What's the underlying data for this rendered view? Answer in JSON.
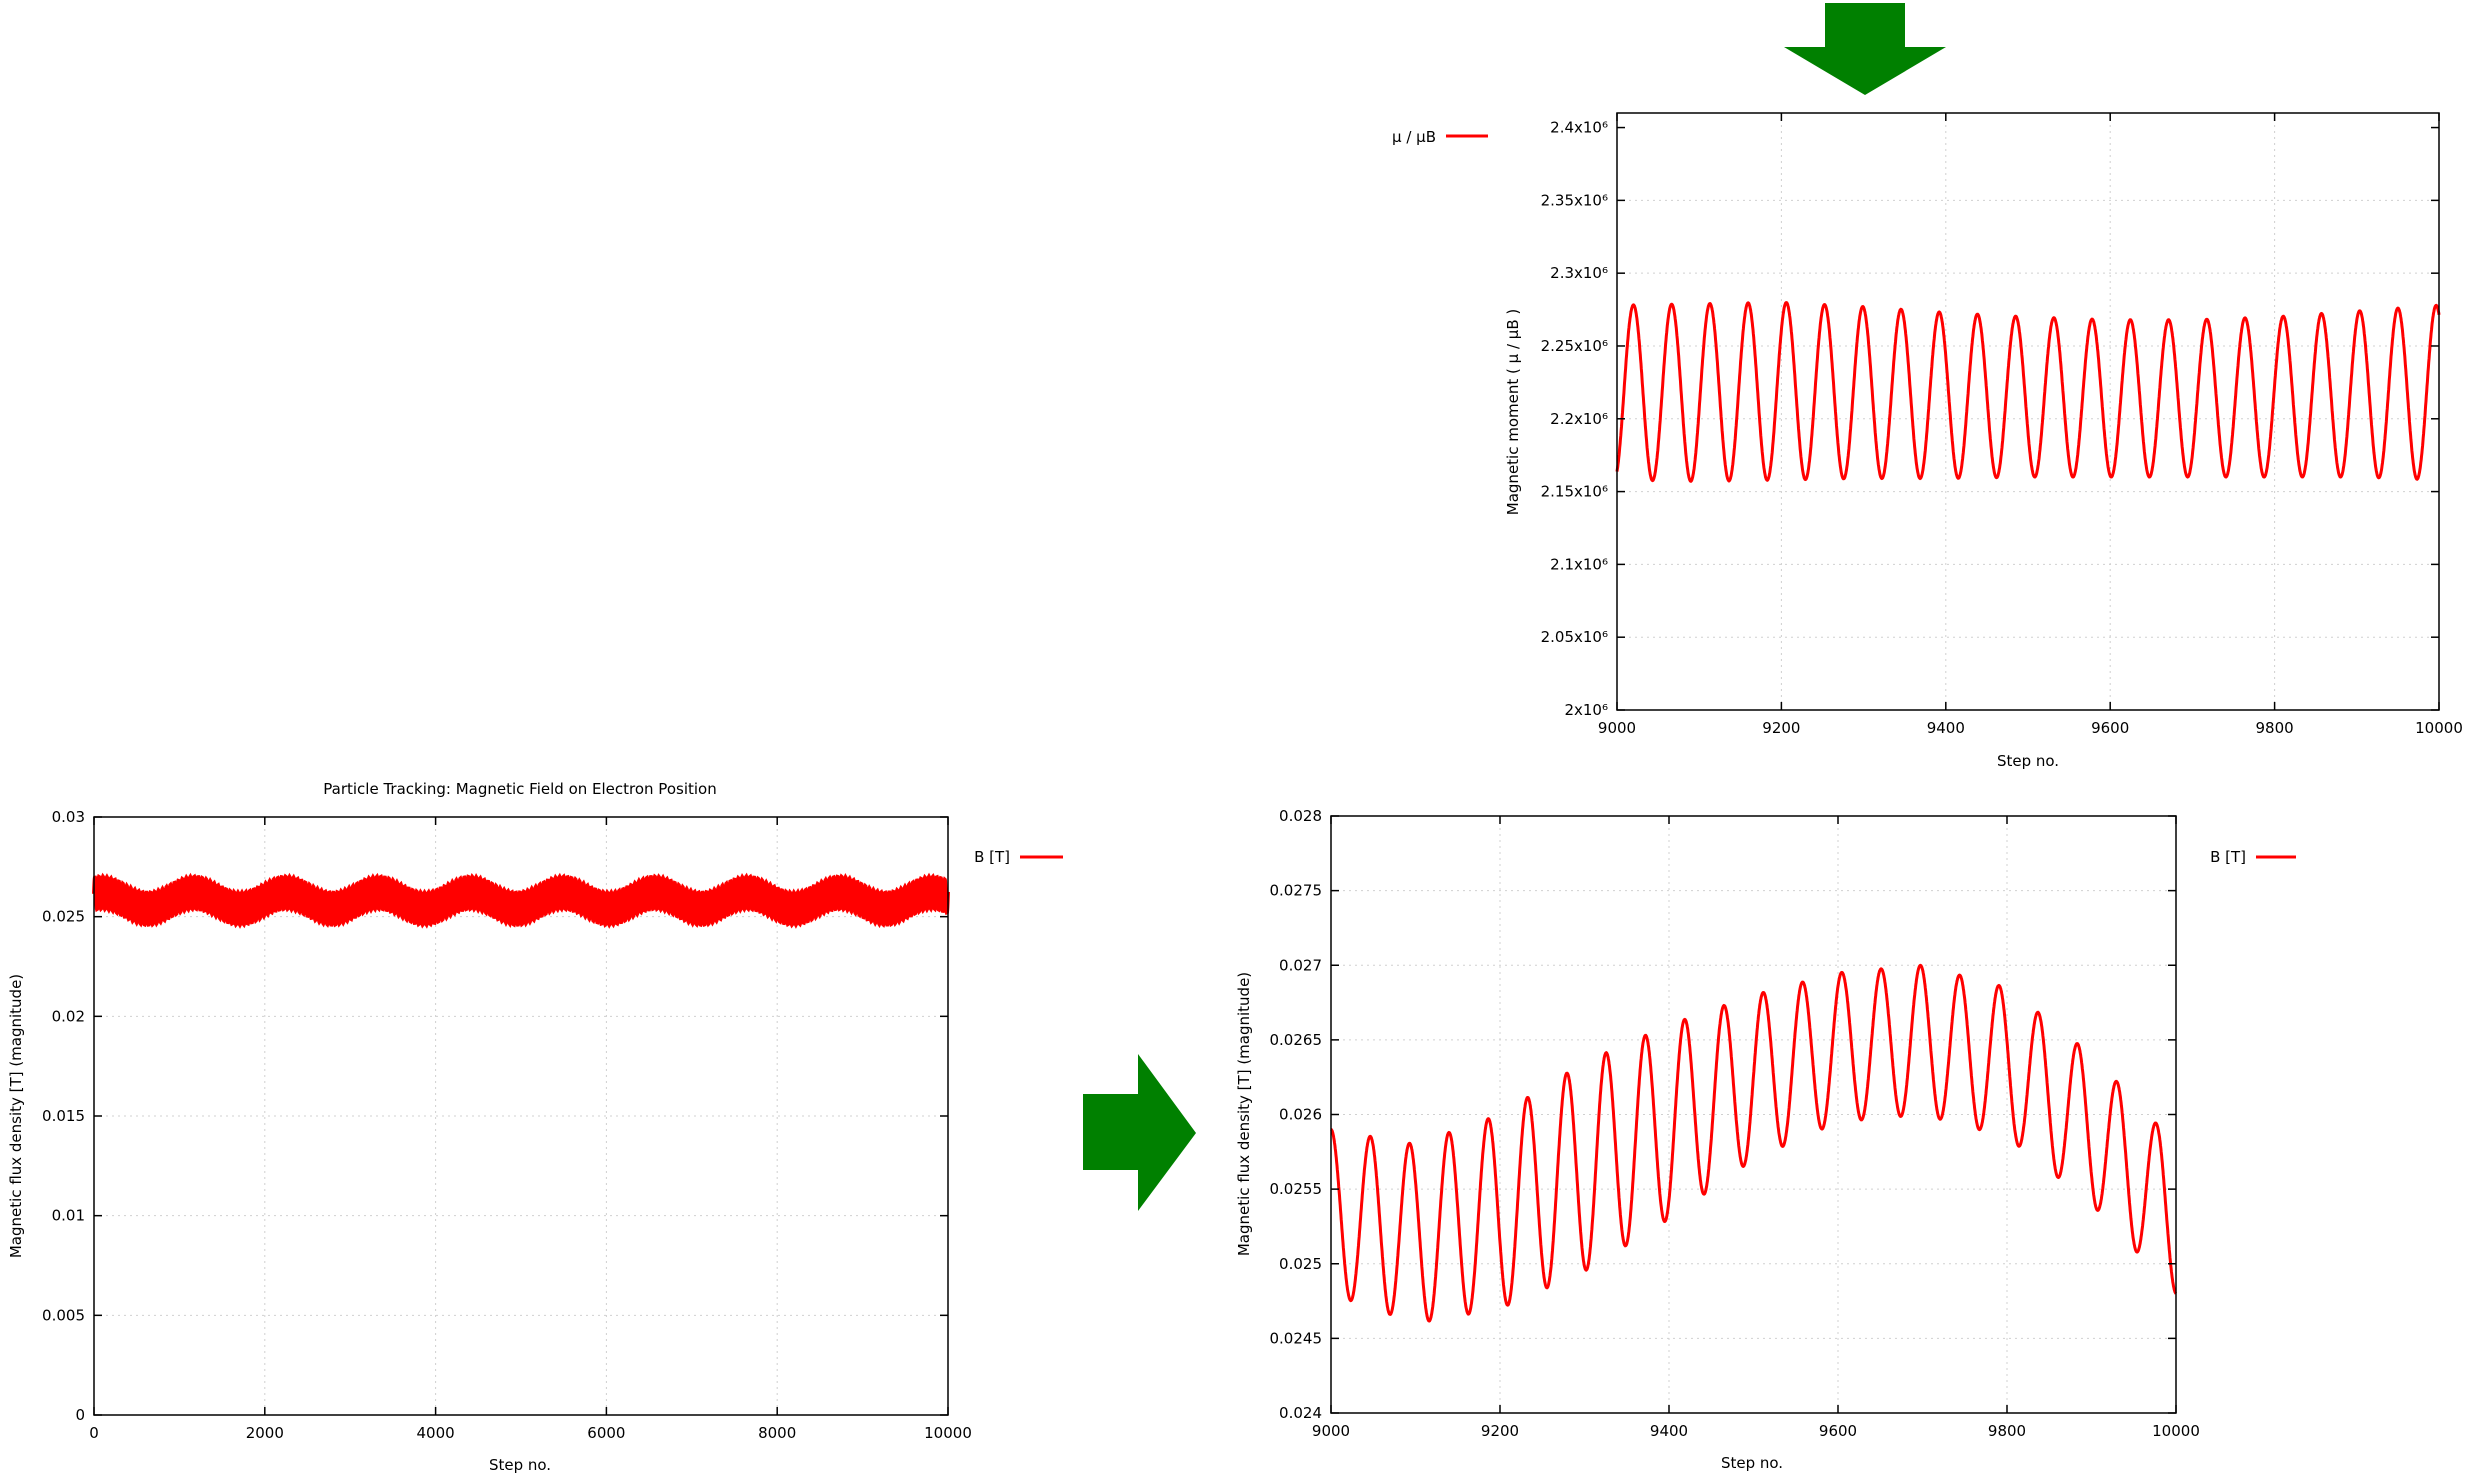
{
  "colors": {
    "series": "#ff0000",
    "arrow": "#008000",
    "axis": "#000000",
    "grid": "#d0d0d0"
  },
  "arrows": [
    {
      "name": "down-arrow-icon",
      "direction": "down"
    },
    {
      "name": "right-arrow-icon",
      "direction": "right"
    }
  ],
  "chart_data": [
    {
      "id": "moment",
      "type": "line",
      "title": "",
      "xlabel": "Step no.",
      "ylabel": "Magnetic moment ( μ / μB )",
      "xlim": [
        9000,
        10000
      ],
      "ylim": [
        2000000,
        2410000
      ],
      "xticks": [
        9000,
        9200,
        9400,
        9600,
        9800,
        10000
      ],
      "xtick_labels": [
        "9000",
        "9200",
        "9400",
        "9600",
        "9800",
        "10000"
      ],
      "yticks": [
        2000000,
        2050000,
        2100000,
        2150000,
        2200000,
        2250000,
        2300000,
        2350000,
        2400000
      ],
      "ytick_labels": [
        "2x10⁶",
        "2.05x10⁶",
        "2.1x10⁶",
        "2.15x10⁶",
        "2.2x10⁶",
        "2.25x10⁶",
        "2.3x10⁶",
        "2.35x10⁶",
        "2.4x10⁶"
      ],
      "legend_position": "top-left, outside plot",
      "grid": true,
      "series": [
        {
          "name": "μ / μB",
          "color": "#ff0000",
          "oscillation_period_steps": 46.5,
          "x": [
            9000,
            9100,
            9200,
            9300,
            9400,
            9500,
            9600,
            9700,
            9800,
            9900,
            10000
          ],
          "center": [
            2218000,
            2218000,
            2219000,
            2218000,
            2216000,
            2215000,
            2214000,
            2214000,
            2215000,
            2217000,
            2218000
          ],
          "amplitude": [
            60000,
            61000,
            61000,
            59000,
            57000,
            55000,
            54000,
            54000,
            55000,
            57000,
            60000
          ]
        }
      ]
    },
    {
      "id": "overview",
      "type": "line",
      "title": "Particle Tracking: Magnetic Field on Electron Position",
      "xlabel": "Step no.",
      "ylabel": "Magnetic flux density [T] (magnitude)",
      "xlim": [
        0,
        10000
      ],
      "ylim": [
        0,
        0.03
      ],
      "xticks": [
        0,
        2000,
        4000,
        6000,
        8000,
        10000
      ],
      "xtick_labels": [
        "0",
        "2000",
        "4000",
        "6000",
        "8000",
        "10000"
      ],
      "yticks": [
        0,
        0.005,
        0.01,
        0.015,
        0.02,
        0.025,
        0.03
      ],
      "ytick_labels": [
        "0",
        "0.005",
        "0.01",
        "0.015",
        "0.02",
        "0.025",
        "0.03"
      ],
      "legend_position": "top-right, outside plot",
      "grid": true,
      "series": [
        {
          "name": "B [T]",
          "color": "#ff0000",
          "fast_period_steps": 46.5,
          "fast_amplitude": 0.0008,
          "slow_period_steps": 1080,
          "slow_amplitude": 0.0004,
          "center": 0.0258
        }
      ]
    },
    {
      "id": "zoom",
      "type": "line",
      "title": "",
      "xlabel": "Step no.",
      "ylabel": "Magnetic flux density [T] (magnitude)",
      "xlim": [
        9000,
        10000
      ],
      "ylim": [
        0.024,
        0.028
      ],
      "xticks": [
        9000,
        9200,
        9400,
        9600,
        9800,
        10000
      ],
      "xtick_labels": [
        "9000",
        "9200",
        "9400",
        "9600",
        "9800",
        "10000"
      ],
      "yticks": [
        0.024,
        0.0245,
        0.025,
        0.0255,
        0.026,
        0.0265,
        0.027,
        0.0275,
        0.028
      ],
      "ytick_labels": [
        "0.024",
        "0.0245",
        "0.025",
        "0.0255",
        "0.026",
        "0.0265",
        "0.027",
        "0.0275",
        "0.028"
      ],
      "legend_position": "top-right, outside plot",
      "grid": true,
      "series": [
        {
          "name": "B [T]",
          "color": "#ff0000",
          "oscillation_period_steps": 46.5,
          "x": [
            9000,
            9100,
            9200,
            9300,
            9400,
            9500,
            9600,
            9700,
            9800,
            9900,
            10000
          ],
          "center": [
            0.02535,
            0.0252,
            0.02535,
            0.02565,
            0.02595,
            0.02625,
            0.02645,
            0.0265,
            0.02635,
            0.0259,
            0.0253
          ],
          "amplitude": [
            0.00055,
            0.0006,
            0.00065,
            0.0007,
            0.00065,
            0.00055,
            0.0005,
            0.0005,
            0.0005,
            0.0005,
            0.0005
          ]
        }
      ]
    }
  ]
}
